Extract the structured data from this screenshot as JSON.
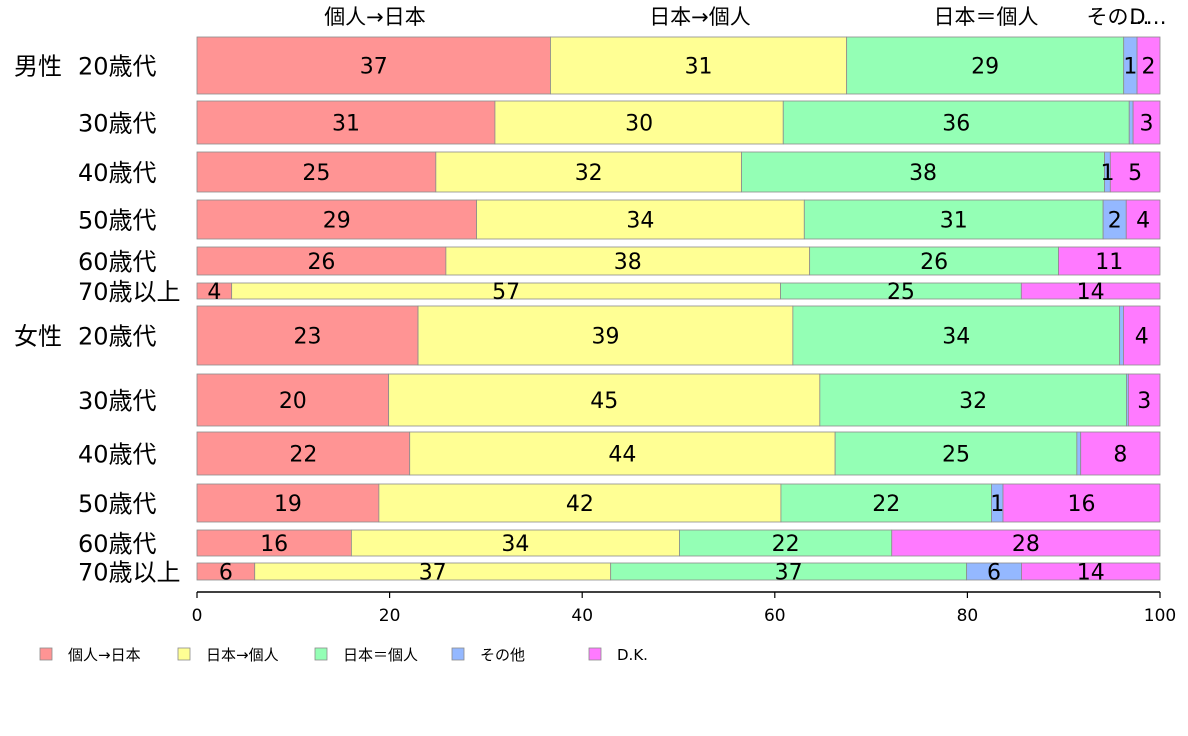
{
  "chart_data": {
    "type": "bar",
    "orientation": "horizontal",
    "stacked": true,
    "xlim": [
      0,
      100
    ],
    "x_ticks": [
      "0",
      "20",
      "40",
      "60",
      "80",
      "100"
    ],
    "grid": false,
    "legend_position": "bottom",
    "column_headers": [
      "個人→日本",
      "日本→個人",
      "日本＝個人",
      "その…",
      "D…"
    ],
    "groups": [
      {
        "label": "男性",
        "rows": [
          0,
          1,
          2,
          3,
          4,
          5
        ]
      },
      {
        "label": "女性",
        "rows": [
          6,
          7,
          8,
          9,
          10,
          11
        ]
      }
    ],
    "categories": [
      "20歳代",
      "30歳代",
      "40歳代",
      "50歳代",
      "60歳代",
      "70歳以上",
      "20歳代",
      "30歳代",
      "40歳代",
      "50歳代",
      "60歳代",
      "70歳以上"
    ],
    "series": [
      {
        "name": "個人→日本",
        "color": "#ff9494",
        "values": [
          37,
          31,
          25,
          29,
          26,
          3.6,
          23,
          20,
          22,
          19,
          16,
          6
        ]
      },
      {
        "name": "日本→個人",
        "color": "#ffff94",
        "values": [
          31,
          30,
          32,
          34,
          38,
          57,
          39,
          45,
          44,
          42,
          34,
          37
        ]
      },
      {
        "name": "日本＝個人",
        "color": "#94ffb5",
        "values": [
          29,
          36,
          38,
          31,
          26,
          25,
          34,
          32,
          25,
          22,
          22,
          37
        ]
      },
      {
        "name": "その他",
        "color": "#94b8ff",
        "values": [
          1.4,
          0.4,
          0.6,
          2.4,
          0,
          0,
          0.4,
          0.2,
          0.4,
          1.2,
          0,
          5.7
        ]
      },
      {
        "name": "D.K.",
        "color": "#ff7aff",
        "values": [
          2.4,
          2.8,
          5.2,
          3.5,
          10.6,
          14.4,
          3.8,
          3.3,
          8.2,
          16.4,
          27.8,
          14.4
        ]
      }
    ],
    "data_labels": [
      [
        "37",
        "31",
        "29",
        "1",
        "2"
      ],
      [
        "31",
        "30",
        "36",
        "",
        "3"
      ],
      [
        "25",
        "32",
        "38",
        "1",
        "5"
      ],
      [
        "29",
        "34",
        "31",
        "2",
        "4"
      ],
      [
        "26",
        "38",
        "26",
        "",
        "11"
      ],
      [
        "4",
        "57",
        "25",
        "",
        "14"
      ],
      [
        "23",
        "39",
        "34",
        "",
        "4"
      ],
      [
        "20",
        "45",
        "32",
        "",
        "3"
      ],
      [
        "22",
        "44",
        "25",
        "",
        "8"
      ],
      [
        "19",
        "42",
        "22",
        "1",
        "16"
      ],
      [
        "16",
        "34",
        "22",
        "",
        "28"
      ],
      [
        "6",
        "37",
        "37",
        "6",
        "14"
      ]
    ]
  }
}
